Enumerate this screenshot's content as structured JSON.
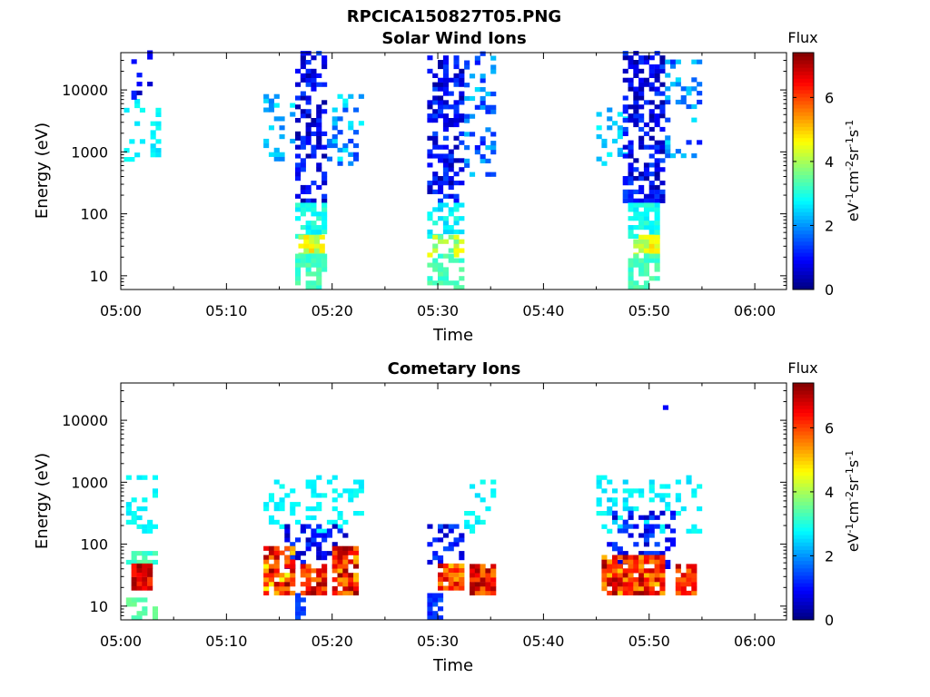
{
  "figure": {
    "title": "RPCICA150827T05.PNG"
  },
  "colorbar": {
    "label": "Flux",
    "unit_parts": [
      "eV",
      "-1",
      "cm",
      "-2",
      "sr",
      "-1",
      "s",
      "-1"
    ],
    "range": [
      0,
      7.4
    ],
    "ticks": [
      "0",
      "2",
      "4",
      "6"
    ],
    "tick_values": [
      0,
      2,
      4,
      6
    ],
    "colormap": "jet"
  },
  "chart_data": [
    {
      "type": "heatmap",
      "title": "Solar Wind Ions",
      "xlabel": "Time",
      "ylabel": "Energy (eV)",
      "y_scale": "log",
      "xlim": [
        "05:00",
        "06:03"
      ],
      "ylim": [
        6,
        40000
      ],
      "x_ticks": [
        "05:00",
        "05:10",
        "05:20",
        "05:30",
        "05:40",
        "05:50",
        "06:00"
      ],
      "y_ticks": [
        "10",
        "100",
        "1000",
        "10000"
      ],
      "y_tick_values": [
        10,
        100,
        1000,
        10000
      ],
      "grid": false,
      "clusters": [
        {
          "t_start": "05:00.3",
          "t_end": "05:03.5",
          "e_min": 700,
          "e_max": 7000,
          "flux_min": 2.5,
          "flux_max": 2.9,
          "density": 0.25
        },
        {
          "t_start": "05:01.0",
          "t_end": "05:03.0",
          "e_min": 7000,
          "e_max": 40000,
          "flux_min": 0.3,
          "flux_max": 1.2,
          "density": 0.2
        },
        {
          "t_start": "05:13.5",
          "t_end": "05:16.5",
          "e_min": 600,
          "e_max": 8000,
          "flux_min": 1.8,
          "flux_max": 2.8,
          "density": 0.3
        },
        {
          "t_start": "05:16.5",
          "t_end": "05:19.5",
          "e_min": 150,
          "e_max": 40000,
          "flux_min": 0.2,
          "flux_max": 1.5,
          "density": 0.55
        },
        {
          "t_start": "05:19.5",
          "t_end": "05:23.0",
          "e_min": 600,
          "e_max": 8000,
          "flux_min": 1.2,
          "flux_max": 2.8,
          "density": 0.35
        },
        {
          "t_start": "05:16.5",
          "t_end": "05:19.5",
          "e_min": 40,
          "e_max": 150,
          "flux_min": 2.6,
          "flux_max": 3.2,
          "density": 0.6
        },
        {
          "t_start": "05:16.8",
          "t_end": "05:19.0",
          "e_min": 20,
          "e_max": 45,
          "flux_min": 3.8,
          "flux_max": 5.0,
          "density": 0.85
        },
        {
          "t_start": "05:16.5",
          "t_end": "05:19.5",
          "e_min": 6,
          "e_max": 20,
          "flux_min": 3.0,
          "flux_max": 3.5,
          "density": 0.7
        },
        {
          "t_start": "05:29.0",
          "t_end": "05:32.5",
          "e_min": 150,
          "e_max": 35000,
          "flux_min": 0.2,
          "flux_max": 1.5,
          "density": 0.55
        },
        {
          "t_start": "05:32.5",
          "t_end": "05:35.5",
          "e_min": 400,
          "e_max": 40000,
          "flux_min": 1.0,
          "flux_max": 2.6,
          "density": 0.25
        },
        {
          "t_start": "05:29.0",
          "t_end": "05:32.5",
          "e_min": 40,
          "e_max": 150,
          "flux_min": 2.4,
          "flux_max": 3.1,
          "density": 0.55
        },
        {
          "t_start": "05:29.0",
          "t_end": "05:32.5",
          "e_min": 20,
          "e_max": 45,
          "flux_min": 3.2,
          "flux_max": 4.8,
          "density": 0.6
        },
        {
          "t_start": "05:29.0",
          "t_end": "05:32.5",
          "e_min": 6,
          "e_max": 20,
          "flux_min": 3.0,
          "flux_max": 3.5,
          "density": 0.6
        },
        {
          "t_start": "05:45.0",
          "t_end": "05:48.0",
          "e_min": 600,
          "e_max": 5000,
          "flux_min": 2.0,
          "flux_max": 2.8,
          "density": 0.3
        },
        {
          "t_start": "05:47.5",
          "t_end": "05:51.5",
          "e_min": 150,
          "e_max": 40000,
          "flux_min": 0.2,
          "flux_max": 1.5,
          "density": 0.55
        },
        {
          "t_start": "05:51.5",
          "t_end": "05:55.0",
          "e_min": 800,
          "e_max": 30000,
          "flux_min": 1.0,
          "flux_max": 2.6,
          "density": 0.3
        },
        {
          "t_start": "05:48.0",
          "t_end": "05:51.0",
          "e_min": 40,
          "e_max": 150,
          "flux_min": 2.6,
          "flux_max": 3.2,
          "density": 0.6
        },
        {
          "t_start": "05:48.5",
          "t_end": "05:51.0",
          "e_min": 20,
          "e_max": 45,
          "flux_min": 3.8,
          "flux_max": 5.0,
          "density": 0.8
        },
        {
          "t_start": "05:48.0",
          "t_end": "05:51.0",
          "e_min": 6,
          "e_max": 20,
          "flux_min": 3.0,
          "flux_max": 3.5,
          "density": 0.7
        }
      ]
    },
    {
      "type": "heatmap",
      "title": "Cometary Ions",
      "xlabel": "Time",
      "ylabel": "Energy (eV)",
      "y_scale": "log",
      "xlim": [
        "05:00",
        "06:03"
      ],
      "ylim": [
        6,
        40000
      ],
      "x_ticks": [
        "05:00",
        "05:10",
        "05:20",
        "05:30",
        "05:40",
        "05:50",
        "06:00"
      ],
      "y_ticks": [
        "10",
        "100",
        "1000",
        "10000"
      ],
      "y_tick_values": [
        10,
        100,
        1000,
        10000
      ],
      "grid": false,
      "clusters": [
        {
          "t_start": "05:00.5",
          "t_end": "05:03.5",
          "e_min": 150,
          "e_max": 1300,
          "flux_min": 2.6,
          "flux_max": 2.9,
          "density": 0.35
        },
        {
          "t_start": "05:00.5",
          "t_end": "05:03.5",
          "e_min": 40,
          "e_max": 70,
          "flux_min": 2.9,
          "flux_max": 3.5,
          "density": 0.6
        },
        {
          "t_start": "05:01.0",
          "t_end": "05:03.0",
          "e_min": 18,
          "e_max": 45,
          "flux_min": 6.0,
          "flux_max": 7.3,
          "density": 0.95
        },
        {
          "t_start": "05:00.5",
          "t_end": "05:03.5",
          "e_min": 6,
          "e_max": 12,
          "flux_min": 3.3,
          "flux_max": 3.6,
          "density": 0.5
        },
        {
          "t_start": "05:13.5",
          "t_end": "05:23.0",
          "e_min": 150,
          "e_max": 1300,
          "flux_min": 2.6,
          "flux_max": 2.9,
          "density": 0.25
        },
        {
          "t_start": "05:15.5",
          "t_end": "05:21.5",
          "e_min": 40,
          "e_max": 200,
          "flux_min": 0.4,
          "flux_max": 1.4,
          "density": 0.45
        },
        {
          "t_start": "05:13.5",
          "t_end": "05:16.5",
          "e_min": 15,
          "e_max": 80,
          "flux_min": 4.5,
          "flux_max": 7.3,
          "density": 0.85
        },
        {
          "t_start": "05:17.0",
          "t_end": "05:19.5",
          "e_min": 15,
          "e_max": 45,
          "flux_min": 5.5,
          "flux_max": 7.3,
          "density": 0.9
        },
        {
          "t_start": "05:20.0",
          "t_end": "05:22.5",
          "e_min": 15,
          "e_max": 80,
          "flux_min": 5.0,
          "flux_max": 7.3,
          "density": 0.85
        },
        {
          "t_start": "05:16.5",
          "t_end": "05:17.5",
          "e_min": 6,
          "e_max": 15,
          "flux_min": 1.0,
          "flux_max": 1.6,
          "density": 0.7
        },
        {
          "t_start": "05:29.0",
          "t_end": "05:30.5",
          "e_min": 6,
          "e_max": 15,
          "flux_min": 1.0,
          "flux_max": 1.6,
          "density": 0.7
        },
        {
          "t_start": "05:29.0",
          "t_end": "05:32.5",
          "e_min": 40,
          "e_max": 200,
          "flux_min": 0.4,
          "flux_max": 1.6,
          "density": 0.4
        },
        {
          "t_start": "05:30.0",
          "t_end": "05:32.5",
          "e_min": 18,
          "e_max": 45,
          "flux_min": 5.0,
          "flux_max": 7.0,
          "density": 0.85
        },
        {
          "t_start": "05:32.5",
          "t_end": "05:35.5",
          "e_min": 150,
          "e_max": 1000,
          "flux_min": 2.5,
          "flux_max": 2.9,
          "density": 0.3
        },
        {
          "t_start": "05:33.0",
          "t_end": "05:35.5",
          "e_min": 15,
          "e_max": 45,
          "flux_min": 5.5,
          "flux_max": 7.3,
          "density": 0.9
        },
        {
          "t_start": "05:45.0",
          "t_end": "05:55.0",
          "e_min": 150,
          "e_max": 1300,
          "flux_min": 2.4,
          "flux_max": 2.9,
          "density": 0.25
        },
        {
          "t_start": "05:46.0",
          "t_end": "05:52.5",
          "e_min": 40,
          "e_max": 300,
          "flux_min": 0.4,
          "flux_max": 1.6,
          "density": 0.4
        },
        {
          "t_start": "05:45.5",
          "t_end": "05:48.5",
          "e_min": 15,
          "e_max": 60,
          "flux_min": 5.0,
          "flux_max": 7.3,
          "density": 0.9
        },
        {
          "t_start": "05:48.5",
          "t_end": "05:51.5",
          "e_min": 15,
          "e_max": 60,
          "flux_min": 5.0,
          "flux_max": 7.3,
          "density": 0.9
        },
        {
          "t_start": "05:52.5",
          "t_end": "05:54.5",
          "e_min": 15,
          "e_max": 45,
          "flux_min": 5.5,
          "flux_max": 7.3,
          "density": 0.9
        }
      ],
      "points": [
        {
          "t": "05:51.3",
          "e": 16000,
          "flux": 0.9
        }
      ]
    }
  ]
}
